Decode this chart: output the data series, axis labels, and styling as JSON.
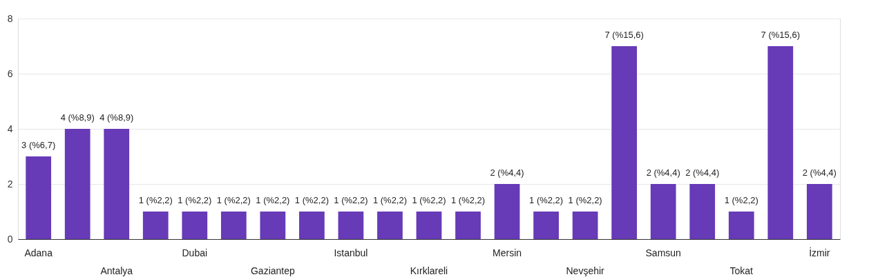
{
  "chart_data": {
    "type": "bar",
    "categories": [
      "Adana",
      null,
      "Antalya",
      null,
      "Dubai",
      null,
      "Gaziantep",
      null,
      "Istanbul",
      null,
      "Kırklareli",
      null,
      "Mersin",
      null,
      "Nevşehir",
      null,
      "Samsun",
      null,
      "Tokat",
      null,
      "İzmir"
    ],
    "values": [
      3,
      4,
      4,
      1,
      1,
      1,
      1,
      1,
      1,
      1,
      1,
      1,
      2,
      1,
      1,
      7,
      2,
      2,
      1,
      7,
      2
    ],
    "value_labels": [
      "3 (%6,7)",
      "4 (%8,9)",
      "4 (%8,9)",
      "1 (%2,2)",
      "1 (%2,2)",
      "1 (%2,2)",
      "1 (%2,2)",
      "1 (%2,2)",
      "1 (%2,2)",
      "1 (%2,2)",
      "1 (%2,2)",
      "1 (%2,2)",
      "2 (%4,4)",
      "1 (%2,2)",
      "1 (%2,2)",
      "7 (%15,6)",
      "2 (%4,4)",
      "2 (%4,4)",
      "1 (%2,2)",
      "7 (%15,6)",
      "2 (%4,4)"
    ],
    "color": "#673ab7",
    "ylim": [
      0,
      8
    ],
    "yticks": [
      0,
      2,
      4,
      6,
      8
    ],
    "grid": "y"
  }
}
